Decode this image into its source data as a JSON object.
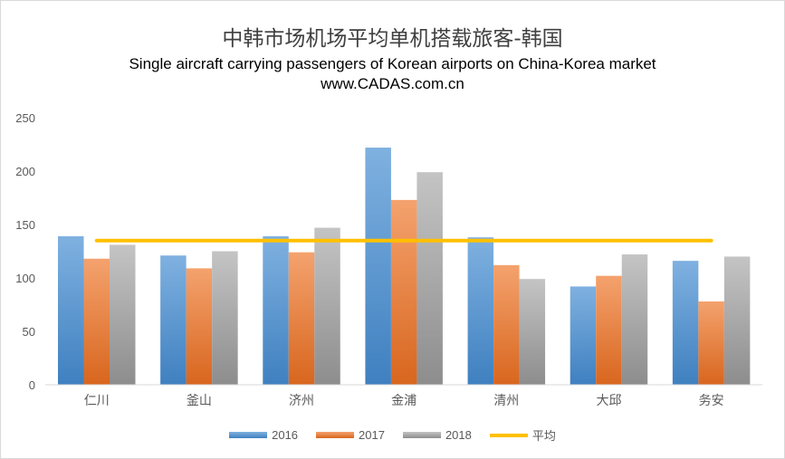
{
  "chart_data": {
    "type": "bar",
    "title": "中韩市场机场平均单机搭载旅客-韩国",
    "subtitle": "Single aircraft carrying passengers of Korean airports on China-Korea market",
    "source_text": "www.CADAS.com.cn",
    "categories": [
      "仁川",
      "釜山",
      "济州",
      "金浦",
      "清州",
      "大邱",
      "务安"
    ],
    "series": [
      {
        "name": "2016",
        "values": [
          139,
          121,
          139,
          222,
          138,
          92,
          116
        ],
        "color": "#5b9bd5"
      },
      {
        "name": "2017",
        "values": [
          118,
          109,
          124,
          173,
          112,
          102,
          78
        ],
        "color": "#ed7d31"
      },
      {
        "name": "2018",
        "values": [
          131,
          125,
          147,
          199,
          99,
          122,
          120
        ],
        "color": "#a5a5a5"
      }
    ],
    "average_line": {
      "name": "平均",
      "value": 135,
      "color": "#ffc000"
    },
    "ylim": [
      0,
      250
    ],
    "yticks": [
      0,
      50,
      100,
      150,
      200,
      250
    ],
    "grid": false,
    "legend_position": "bottom"
  }
}
